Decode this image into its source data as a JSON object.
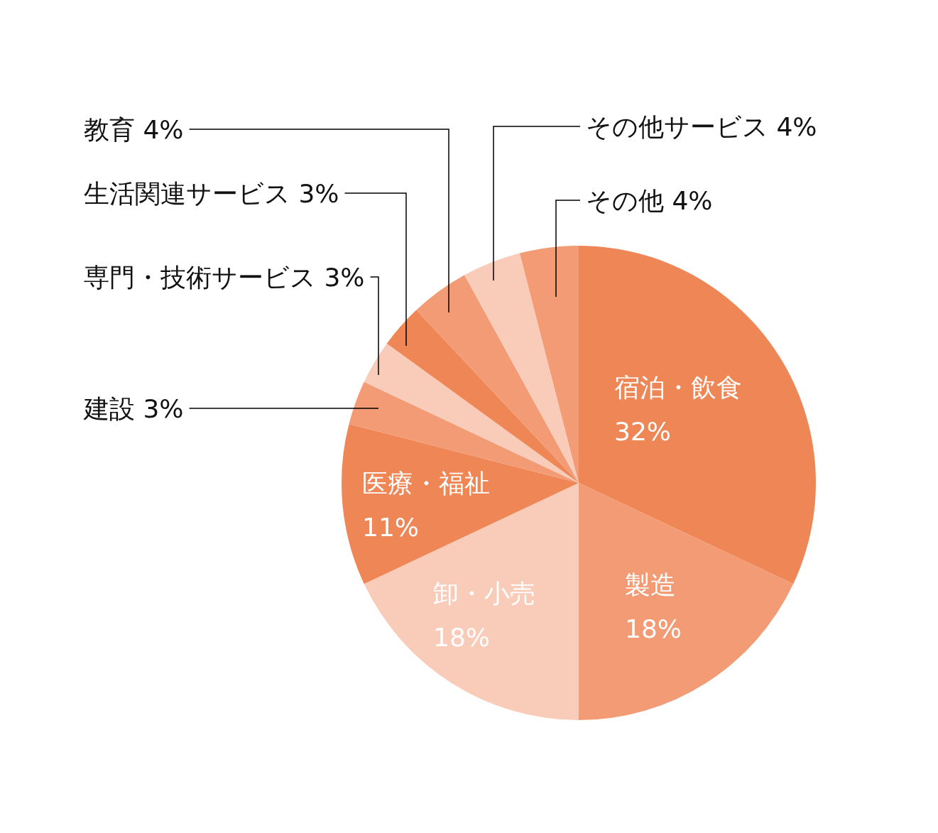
{
  "chart_data": {
    "type": "pie",
    "categories": [
      "宿泊・飲食",
      "製造",
      "卸・小売",
      "医療・福祉",
      "建設",
      "専門・技術サービス",
      "生活関連サービス",
      "教育",
      "その他サービス",
      "その他"
    ],
    "values": [
      32,
      18,
      18,
      11,
      3,
      3,
      3,
      4,
      4,
      4
    ],
    "value_labels": [
      "32%",
      "18%",
      "18%",
      "11%",
      "3%",
      "3%",
      "3%",
      "4%",
      "4%",
      "4%"
    ],
    "colors": [
      "#ee8656",
      "#f29b74",
      "#f9cbb9",
      "#ee8656",
      "#f29b74",
      "#f9cbb9",
      "#ee8656",
      "#f29b74",
      "#f9cbb9",
      "#f29b74"
    ]
  }
}
